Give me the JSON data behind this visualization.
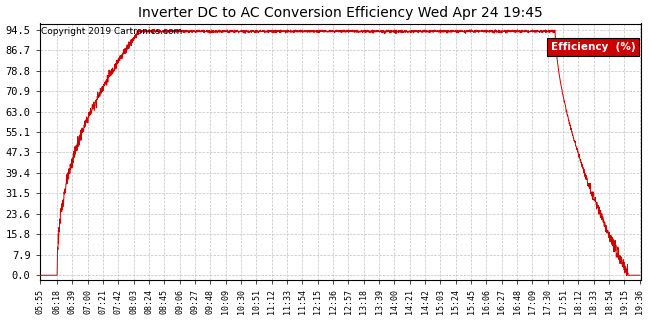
{
  "title": "Inverter DC to AC Conversion Efficiency Wed Apr 24 19:45",
  "copyright": "Copyright 2019 Cartronics.com",
  "legend_label": "Efficiency  (%)",
  "legend_bg": "#cc0000",
  "legend_fg": "#ffffff",
  "line_color": "#cc0000",
  "bg_color": "#ffffff",
  "plot_bg": "#ffffff",
  "grid_color": "#bbbbbb",
  "yticks": [
    0.0,
    7.9,
    15.8,
    23.6,
    31.5,
    39.4,
    47.3,
    55.1,
    63.0,
    70.9,
    78.8,
    86.7,
    94.5
  ],
  "ymin": 0.0,
  "ymax": 94.5,
  "x_start_minutes": 355,
  "x_end_minutes": 1176,
  "xtick_labels": [
    "05:55",
    "06:18",
    "06:39",
    "07:00",
    "07:21",
    "07:42",
    "08:03",
    "08:24",
    "08:45",
    "09:06",
    "09:27",
    "09:48",
    "10:09",
    "10:30",
    "10:51",
    "11:12",
    "11:33",
    "11:54",
    "12:15",
    "12:36",
    "12:57",
    "13:18",
    "13:39",
    "14:00",
    "14:21",
    "14:42",
    "15:03",
    "15:24",
    "15:45",
    "16:06",
    "16:27",
    "16:48",
    "17:09",
    "17:30",
    "17:51",
    "18:12",
    "18:33",
    "18:54",
    "19:15",
    "19:36"
  ],
  "xtick_minutes": [
    355,
    378,
    399,
    420,
    441,
    462,
    483,
    504,
    525,
    546,
    567,
    588,
    609,
    630,
    651,
    672,
    693,
    714,
    735,
    756,
    777,
    798,
    819,
    840,
    861,
    882,
    903,
    924,
    945,
    966,
    987,
    1008,
    1029,
    1050,
    1071,
    1092,
    1113,
    1134,
    1155,
    1176
  ],
  "t_on": 378,
  "t_rise_end": 490,
  "t_plateau_end": 1060,
  "t_drop_end": 1160,
  "plateau_val": 94.0,
  "rise_noise_std": 1.2,
  "plateau_noise_std": 0.25,
  "drop_noise_std": 1.5
}
